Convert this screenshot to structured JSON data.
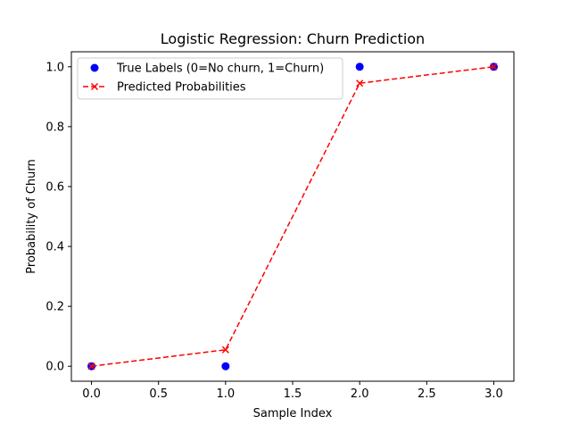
{
  "chart_data": {
    "type": "scatter",
    "title": "Logistic Regression: Churn Prediction",
    "xlabel": "Sample Index",
    "ylabel": "Probability of Churn",
    "xlim": [
      -0.15,
      3.15
    ],
    "ylim": [
      -0.05,
      1.05
    ],
    "xticks": [
      0.0,
      0.5,
      1.0,
      1.5,
      2.0,
      2.5,
      3.0
    ],
    "xtick_labels": [
      "0.0",
      "0.5",
      "1.0",
      "1.5",
      "2.0",
      "2.5",
      "3.0"
    ],
    "yticks": [
      0.0,
      0.2,
      0.4,
      0.6,
      0.8,
      1.0
    ],
    "ytick_labels": [
      "0.0",
      "0.2",
      "0.4",
      "0.6",
      "0.8",
      "1.0"
    ],
    "grid": false,
    "legend_position": "upper-left",
    "series": [
      {
        "name": "True Labels (0=No churn, 1=Churn)",
        "kind": "scatter",
        "marker": "circle",
        "color": "#0000ff",
        "x": [
          0,
          1,
          2,
          3
        ],
        "y": [
          0,
          0,
          1,
          1
        ]
      },
      {
        "name": "Predicted Probabilities",
        "kind": "line",
        "marker": "x",
        "linestyle": "dashed",
        "color": "#ff0000",
        "x": [
          0,
          1,
          2,
          3
        ],
        "y": [
          0.0,
          0.055,
          0.945,
          1.0
        ]
      }
    ]
  }
}
